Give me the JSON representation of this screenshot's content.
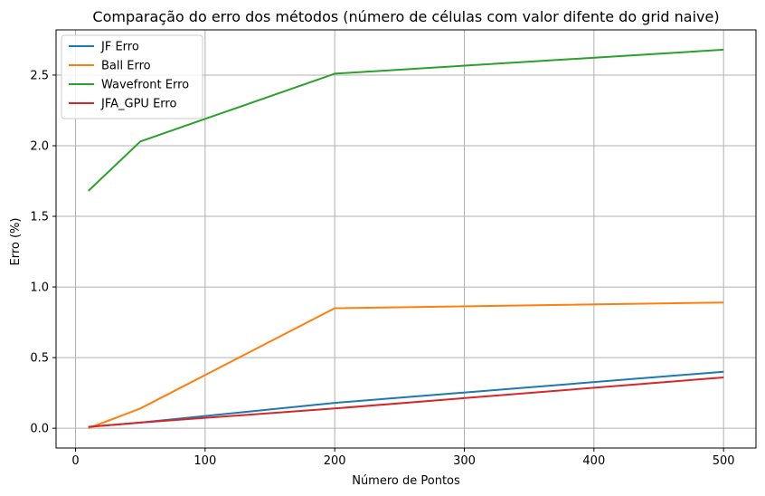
{
  "chart_data": {
    "type": "line",
    "title": "Comparação do erro dos métodos (número de células com valor difente do grid naive)",
    "xlabel": "Número de Pontos",
    "ylabel": "Erro (%)",
    "xlim": [
      -15,
      525
    ],
    "ylim": [
      -0.14,
      2.82
    ],
    "xticks": [
      0,
      100,
      200,
      300,
      400,
      500
    ],
    "xtick_labels": [
      "0",
      "100",
      "200",
      "300",
      "400",
      "500"
    ],
    "yticks": [
      0.0,
      0.5,
      1.0,
      1.5,
      2.0,
      2.5
    ],
    "ytick_labels": [
      "0.0",
      "0.5",
      "1.0",
      "1.5",
      "2.0",
      "2.5"
    ],
    "grid": true,
    "legend_position": "top-left",
    "x": [
      10,
      50,
      200,
      500
    ],
    "series": [
      {
        "name": "JF Erro",
        "color": "#1f77b4",
        "values": [
          0.01,
          0.04,
          0.18,
          0.4
        ]
      },
      {
        "name": "Ball Erro",
        "color": "#ff7f0e",
        "values": [
          0.0,
          0.14,
          0.85,
          0.89
        ]
      },
      {
        "name": "Wavefront Erro",
        "color": "#2ca02c",
        "values": [
          1.68,
          2.03,
          2.51,
          2.68
        ]
      },
      {
        "name": "JFA_GPU Erro",
        "color": "#d62728",
        "values": [
          0.01,
          0.04,
          0.14,
          0.36
        ]
      }
    ]
  }
}
